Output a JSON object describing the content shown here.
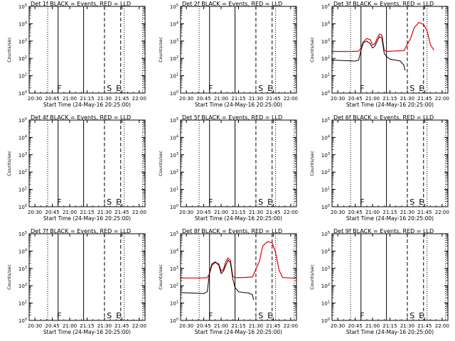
{
  "figure": {
    "background": "#ffffff",
    "foreground": "#000000",
    "lld_color": "#e00000",
    "events_color": "#000000"
  },
  "chart_data": [
    {
      "type": "line",
      "title": "Det 1f BLACK = Events, RED = LLD",
      "xlabel": "Start Time (24-May-16 20:25:00)",
      "ylabel": "Counts/sec",
      "x_ticks": [
        "20:30",
        "20:45",
        "21:00",
        "21:15",
        "21:30",
        "21:45",
        "22:00"
      ],
      "y_ticks": [
        "10^0",
        "10^1",
        "10^2",
        "10^3",
        "10^4",
        "10^5"
      ],
      "y_scale": "log",
      "xlim": [
        "20:25",
        "22:05"
      ],
      "ylim": [
        1,
        100000
      ],
      "markers": {
        "F": "20:49",
        "S": "21:32",
        "E": "21:40"
      },
      "vlines": {
        "dotted": [
          "20:41",
          "21:47",
          "22:03"
        ],
        "solid": [
          "20:50",
          "21:12"
        ],
        "dashed": [
          "21:30",
          "21:44"
        ]
      },
      "series": []
    },
    {
      "type": "line",
      "title": "Det 2f BLACK = Events, RED = LLD",
      "xlabel": "Start Time (24-May-16 20:25:00)",
      "ylabel": "Counts/sec",
      "x_ticks": [
        "20:30",
        "20:45",
        "21:00",
        "21:15",
        "21:30",
        "21:45",
        "22:00"
      ],
      "y_ticks": [
        "10^0",
        "10^1",
        "10^2",
        "10^3",
        "10^4",
        "10^5"
      ],
      "y_scale": "log",
      "xlim": [
        "20:25",
        "22:05"
      ],
      "ylim": [
        1,
        100000
      ],
      "markers": {
        "F": "20:49",
        "S": "21:32",
        "E": "21:40"
      },
      "vlines": {
        "dotted": [
          "20:41",
          "21:47",
          "22:03"
        ],
        "solid": [
          "20:50",
          "21:12"
        ],
        "dashed": [
          "21:30",
          "21:44"
        ]
      },
      "series": []
    },
    {
      "type": "line",
      "title": "Det 3f BLACK = Events, RED = LLD",
      "xlabel": "Start Time (24-May-16 20:25:00)",
      "ylabel": "Counts/sec",
      "x_ticks": [
        "20:30",
        "20:45",
        "21:00",
        "21:15",
        "21:30",
        "21:45",
        "22:00"
      ],
      "y_ticks": [
        "10^0",
        "10^1",
        "10^2",
        "10^3",
        "10^4",
        "10^5"
      ],
      "y_scale": "log",
      "xlim": [
        "20:25",
        "22:05"
      ],
      "ylim": [
        1,
        100000
      ],
      "markers": {
        "F": "20:49",
        "S": "21:32",
        "E": "21:40"
      },
      "vlines": {
        "dotted": [
          "20:41",
          "21:47",
          "22:03"
        ],
        "solid": [
          "20:50",
          "21:12"
        ],
        "dashed": [
          "21:30",
          "21:44"
        ]
      },
      "series": [
        {
          "role": "lld",
          "x": [
            "20:25",
            "20:40",
            "20:48",
            "20:50",
            "20:52",
            "20:55",
            "20:58",
            "21:00",
            "21:02",
            "21:04",
            "21:06",
            "21:08",
            "21:10",
            "21:12",
            "21:15",
            "21:20",
            "21:27",
            "21:33",
            "21:36",
            "21:40",
            "21:44",
            "21:47",
            "21:50",
            "21:53"
          ],
          "y": [
            250,
            250,
            260,
            400,
            900,
            1400,
            1200,
            600,
            700,
            1500,
            2500,
            2200,
            300,
            250,
            260,
            270,
            280,
            1500,
            6000,
            12000,
            9000,
            4000,
            600,
            300
          ]
        },
        {
          "role": "events",
          "x": [
            "20:25",
            "20:35",
            "20:45",
            "20:48",
            "20:50",
            "20:52",
            "20:55",
            "20:58",
            "21:00",
            "21:02",
            "21:04",
            "21:06",
            "21:08",
            "21:10",
            "21:12",
            "21:15",
            "21:20",
            "21:24",
            "21:27",
            "21:28"
          ],
          "y": [
            80,
            75,
            70,
            80,
            300,
            800,
            1000,
            700,
            400,
            500,
            1000,
            1800,
            1500,
            200,
            130,
            90,
            80,
            70,
            40,
            20
          ]
        }
      ]
    },
    {
      "type": "line",
      "title": "Det 4f BLACK = Events, RED = LLD",
      "xlabel": "Start Time (24-May-16 20:25:00)",
      "ylabel": "Counts/sec",
      "x_ticks": [
        "20:30",
        "20:45",
        "21:00",
        "21:15",
        "21:30",
        "21:45",
        "22:00"
      ],
      "y_ticks": [
        "10^0",
        "10^1",
        "10^2",
        "10^3",
        "10^4",
        "10^5"
      ],
      "y_scale": "log",
      "xlim": [
        "20:25",
        "22:05"
      ],
      "ylim": [
        1,
        100000
      ],
      "markers": {
        "F": "20:49",
        "S": "21:32",
        "E": "21:40"
      },
      "vlines": {
        "dotted": [
          "20:41",
          "21:47",
          "22:03"
        ],
        "solid": [
          "20:50",
          "21:12"
        ],
        "dashed": [
          "21:30",
          "21:44"
        ]
      },
      "series": []
    },
    {
      "type": "line",
      "title": "Det 5f BLACK = Events, RED = LLD",
      "xlabel": "Start Time (24-May-16 20:25:00)",
      "ylabel": "Counts/sec",
      "x_ticks": [
        "20:30",
        "20:45",
        "21:00",
        "21:15",
        "21:30",
        "21:45",
        "22:00"
      ],
      "y_ticks": [
        "10^0",
        "10^1",
        "10^2",
        "10^3",
        "10^4",
        "10^5"
      ],
      "y_scale": "log",
      "xlim": [
        "20:25",
        "22:05"
      ],
      "ylim": [
        1,
        100000
      ],
      "markers": {
        "F": "20:49",
        "S": "21:32",
        "E": "21:40"
      },
      "vlines": {
        "dotted": [
          "20:41",
          "21:47",
          "22:03"
        ],
        "solid": [
          "20:50",
          "21:12"
        ],
        "dashed": [
          "21:30",
          "21:44"
        ]
      },
      "series": []
    },
    {
      "type": "line",
      "title": "Det 6f BLACK = Events, RED = LLD",
      "xlabel": "Start Time (24-May-16 20:25:00)",
      "ylabel": "Counts/sec",
      "x_ticks": [
        "20:30",
        "20:45",
        "21:00",
        "21:15",
        "21:30",
        "21:45",
        "22:00"
      ],
      "y_ticks": [
        "10^0",
        "10^1",
        "10^2",
        "10^3",
        "10^4",
        "10^5"
      ],
      "y_scale": "log",
      "xlim": [
        "20:25",
        "22:05"
      ],
      "ylim": [
        1,
        100000
      ],
      "markers": {
        "F": "20:49",
        "S": "21:32",
        "E": "21:40"
      },
      "vlines": {
        "dotted": [
          "20:41",
          "21:47",
          "22:03"
        ],
        "solid": [
          "20:50",
          "21:12"
        ],
        "dashed": [
          "21:30",
          "21:44"
        ]
      },
      "series": []
    },
    {
      "type": "line",
      "title": "Det 7f BLACK = Events, RED = LLD",
      "xlabel": "Start Time (24-May-16 20:25:00)",
      "ylabel": "Counts/sec",
      "x_ticks": [
        "20:30",
        "20:45",
        "21:00",
        "21:15",
        "21:30",
        "21:45",
        "22:00"
      ],
      "y_ticks": [
        "10^0",
        "10^1",
        "10^2",
        "10^3",
        "10^4",
        "10^5"
      ],
      "y_scale": "log",
      "xlim": [
        "20:25",
        "22:05"
      ],
      "ylim": [
        1,
        100000
      ],
      "markers": {
        "F": "20:49",
        "S": "21:32",
        "E": "21:40"
      },
      "vlines": {
        "dotted": [
          "20:41",
          "21:47",
          "22:03"
        ],
        "solid": [
          "20:50",
          "21:12"
        ],
        "dashed": [
          "21:30",
          "21:44"
        ]
      },
      "series": []
    },
    {
      "type": "line",
      "title": "Det 8f BLACK = Events, RED = LLD",
      "xlabel": "Start Time (24-May-16 20:25:00)",
      "ylabel": "Counts/sec",
      "x_ticks": [
        "20:30",
        "20:45",
        "21:00",
        "21:15",
        "21:30",
        "21:45",
        "22:00"
      ],
      "y_ticks": [
        "10^0",
        "10^1",
        "10^2",
        "10^3",
        "10^4",
        "10^5"
      ],
      "y_scale": "log",
      "xlim": [
        "20:25",
        "22:05"
      ],
      "ylim": [
        1,
        100000
      ],
      "markers": {
        "F": "20:49",
        "S": "21:32",
        "E": "21:40"
      },
      "vlines": {
        "dotted": [
          "20:41",
          "21:47",
          "22:03"
        ],
        "solid": [
          "20:50",
          "21:12"
        ],
        "dashed": [
          "21:30",
          "21:44"
        ]
      },
      "series": [
        {
          "role": "lld",
          "x": [
            "20:25",
            "20:40",
            "20:48",
            "20:50",
            "20:52",
            "20:55",
            "20:58",
            "21:00",
            "21:02",
            "21:04",
            "21:06",
            "21:08",
            "21:10",
            "21:12",
            "21:15",
            "21:20",
            "21:27",
            "21:33",
            "21:36",
            "21:40",
            "21:44",
            "21:47",
            "21:50",
            "21:53",
            "22:00",
            "22:05"
          ],
          "y": [
            280,
            280,
            290,
            500,
            1500,
            2200,
            1800,
            700,
            900,
            2500,
            4000,
            3000,
            350,
            300,
            290,
            300,
            320,
            2500,
            20000,
            35000,
            30000,
            8000,
            800,
            300,
            280,
            280
          ]
        },
        {
          "role": "events",
          "x": [
            "20:25",
            "20:35",
            "20:45",
            "20:48",
            "20:50",
            "20:52",
            "20:55",
            "20:58",
            "21:00",
            "21:02",
            "21:04",
            "21:06",
            "21:08",
            "21:10",
            "21:12",
            "21:15",
            "21:20",
            "21:24",
            "21:27",
            "21:28"
          ],
          "y": [
            40,
            38,
            35,
            45,
            600,
            1800,
            2400,
            1500,
            500,
            700,
            1500,
            3000,
            2200,
            250,
            80,
            45,
            40,
            38,
            30,
            15
          ]
        }
      ]
    },
    {
      "type": "line",
      "title": "Det 9f BLACK = Events, RED = LLD",
      "xlabel": "Start Time (24-May-16 20:25:00)",
      "ylabel": "Counts/sec",
      "x_ticks": [
        "20:30",
        "20:45",
        "21:00",
        "21:15",
        "21:30",
        "21:45",
        "22:00"
      ],
      "y_ticks": [
        "10^0",
        "10^1",
        "10^2",
        "10^3",
        "10^4",
        "10^5"
      ],
      "y_scale": "log",
      "xlim": [
        "20:25",
        "22:05"
      ],
      "ylim": [
        1,
        100000
      ],
      "markers": {
        "F": "20:49",
        "S": "21:32",
        "E": "21:40"
      },
      "vlines": {
        "dotted": [
          "20:41",
          "21:47",
          "22:03"
        ],
        "solid": [
          "20:50",
          "21:12"
        ],
        "dashed": [
          "21:30",
          "21:44"
        ]
      },
      "series": []
    }
  ]
}
